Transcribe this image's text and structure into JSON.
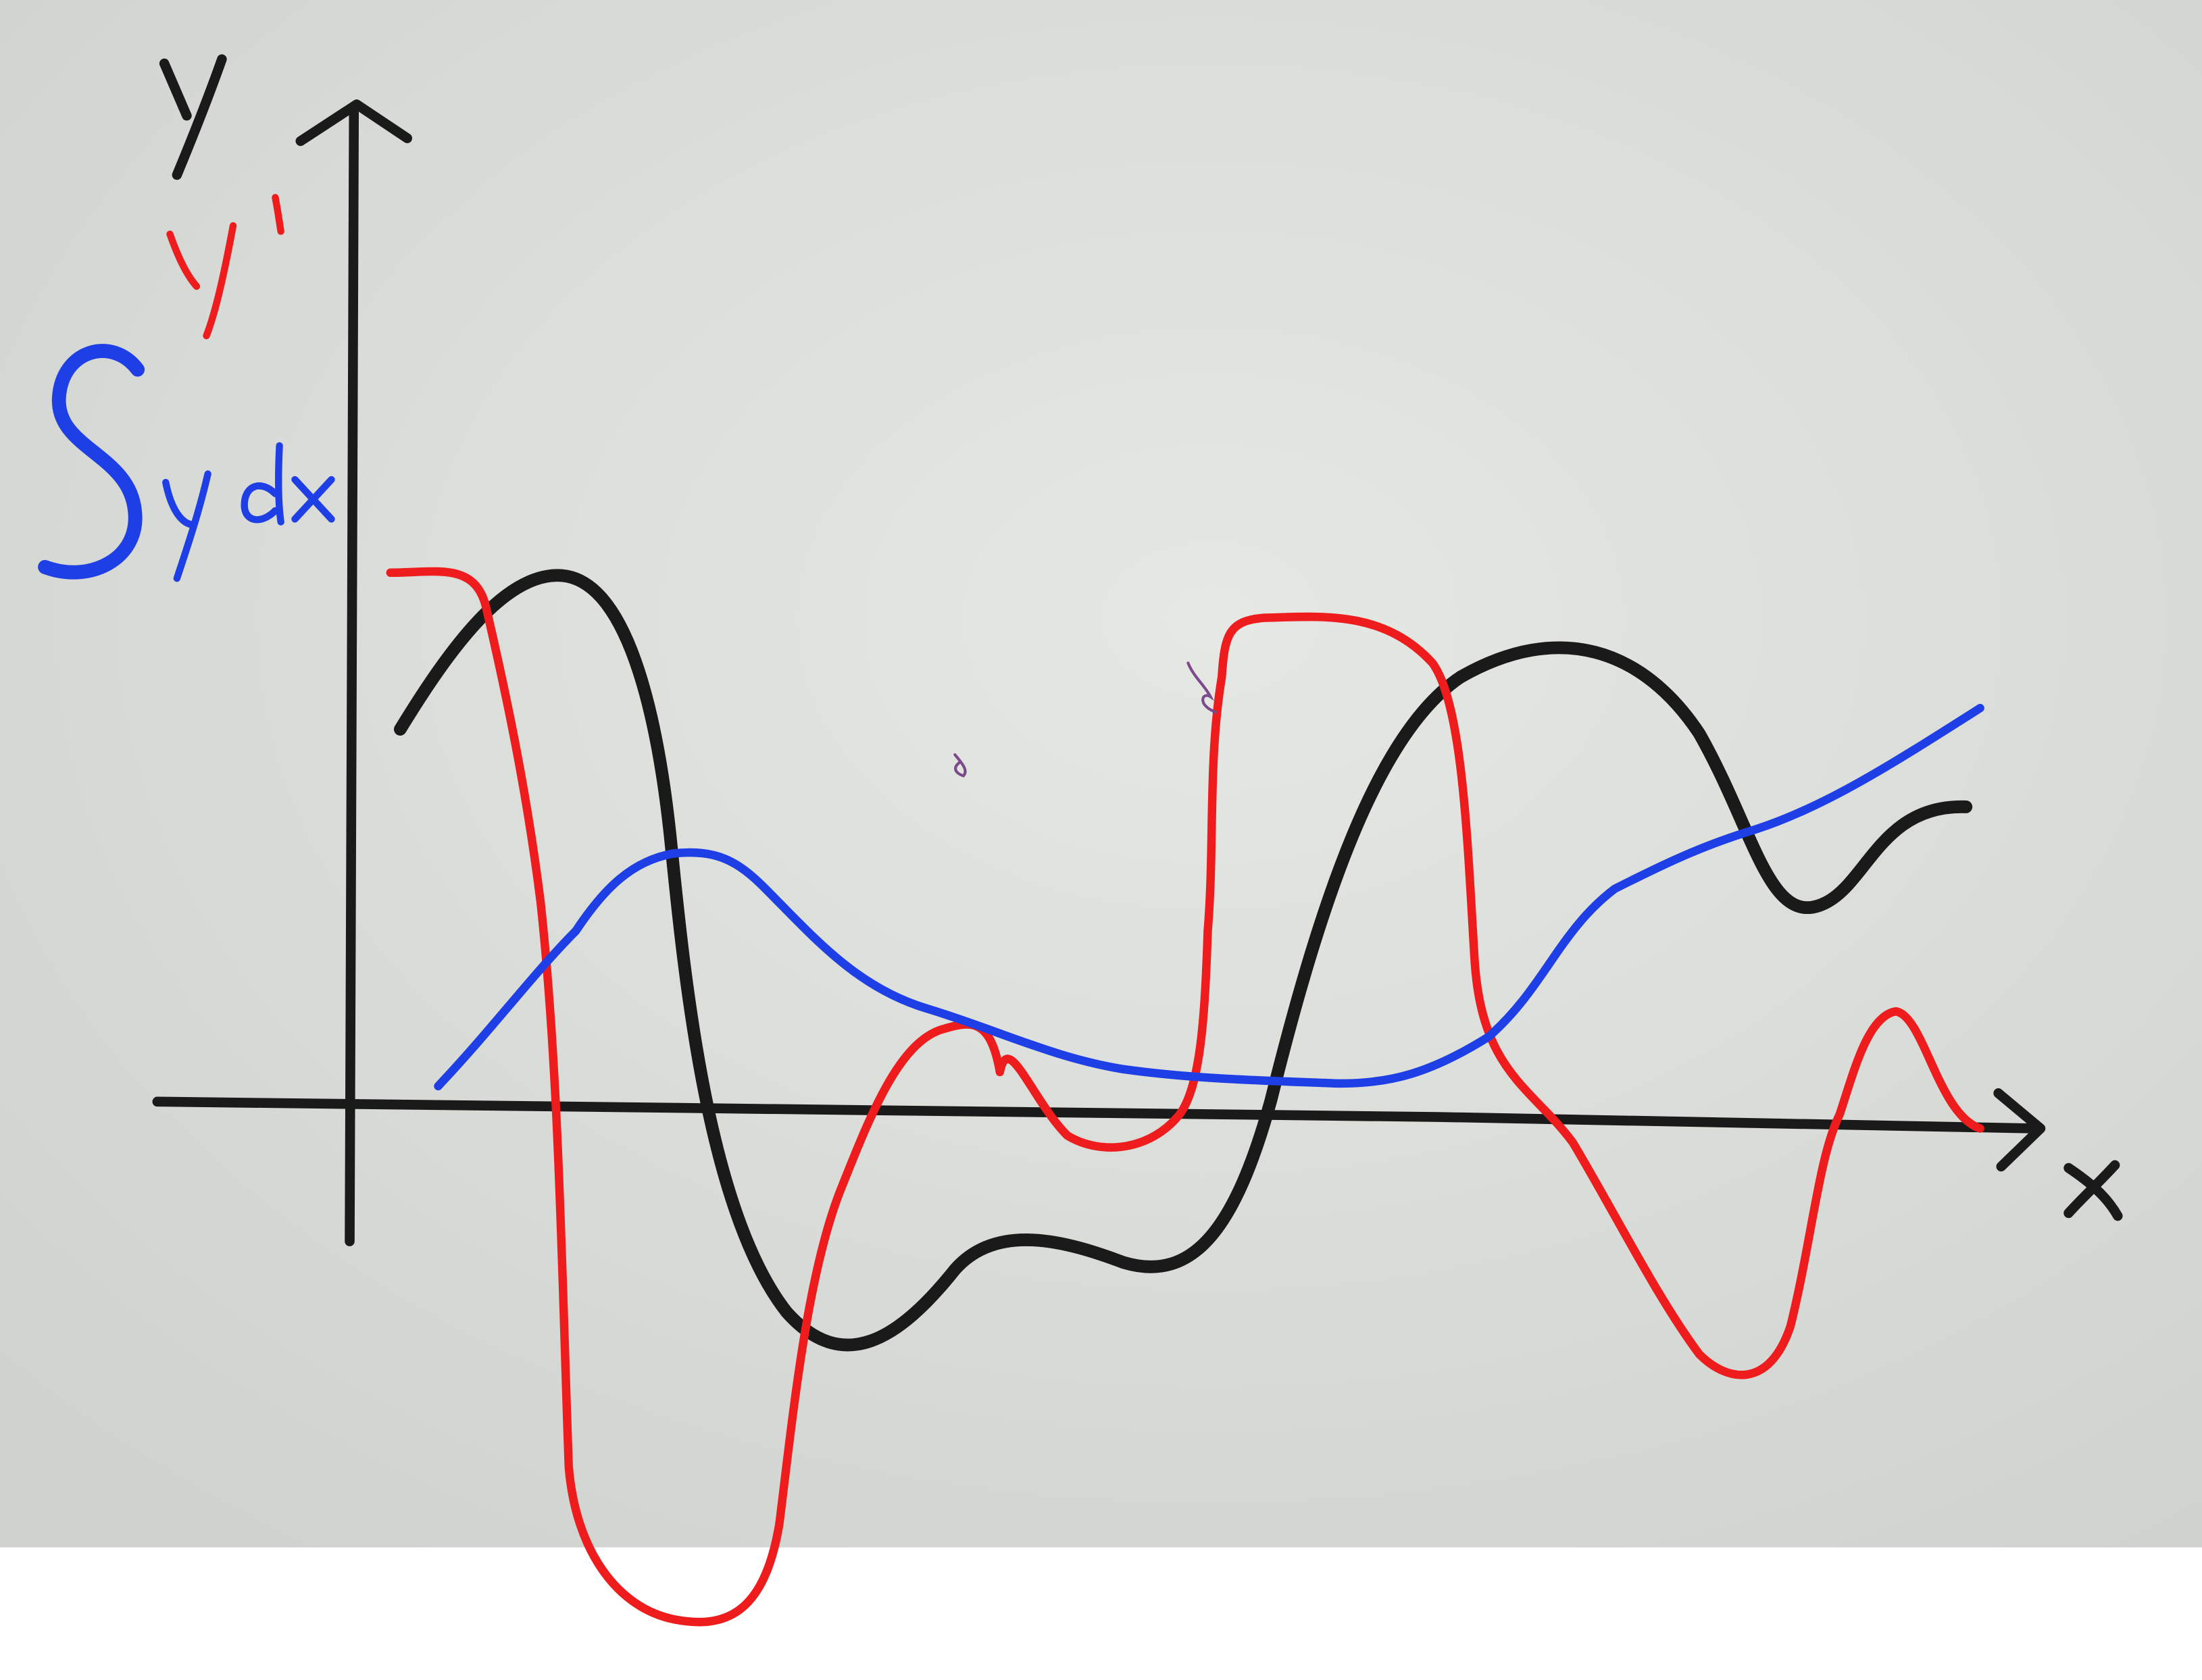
{
  "photo": {
    "paper_color": "#e6e8e4",
    "paper_shade_color": "#cfd2ce",
    "background_color": "#ffffff",
    "ink_colors": {
      "black": "#1a1a1a",
      "red": "#ee1c1c",
      "blue": "#1f3fe6"
    }
  },
  "axes": {
    "y_label": "y",
    "x_label": "x"
  },
  "legend": {
    "black_label": "y",
    "red_label": "y'",
    "blue_label": "ydx",
    "blue_symbol": "integral-sign"
  },
  "curves": [
    {
      "name": "",
      "color": "black"
    },
    {
      "name": "",
      "color": "red"
    },
    {
      "name": "",
      "color": "blue"
    }
  ]
}
